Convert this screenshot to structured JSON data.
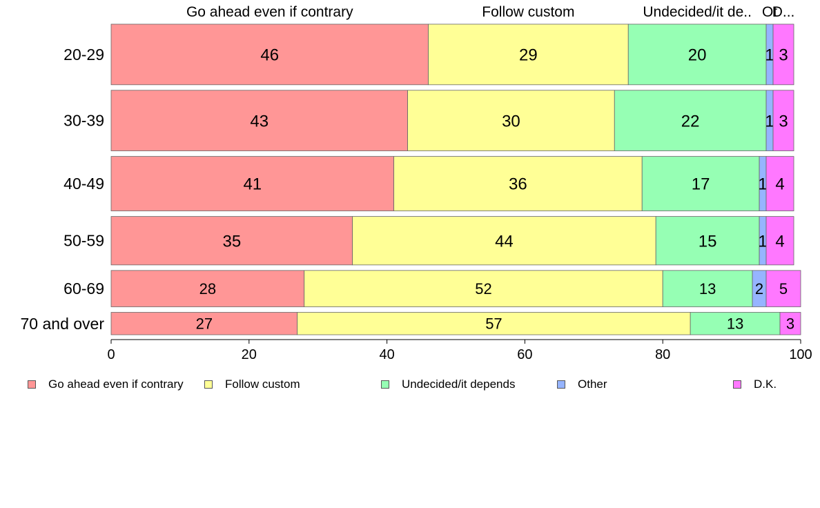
{
  "chart_data": {
    "type": "bar",
    "orientation": "horizontal",
    "stacked": true,
    "categories": [
      "20-29",
      "30-39",
      "40-49",
      "50-59",
      "60-69",
      "70 and over"
    ],
    "category_weights": [
      1.0,
      1.0,
      0.9,
      0.8,
      0.6,
      0.37
    ],
    "series": [
      {
        "name": "Go ahead even if contrary",
        "top_label": "Go ahead even if contrary",
        "color": "#ff9696",
        "values": [
          46,
          43,
          41,
          35,
          28,
          27
        ]
      },
      {
        "name": "Follow custom",
        "top_label": "Follow custom",
        "color": "#ffff96",
        "values": [
          29,
          30,
          36,
          44,
          52,
          57
        ]
      },
      {
        "name": "Undecided/it depends",
        "top_label": "Undecided/it de..",
        "color": "#96ffb4",
        "values": [
          20,
          22,
          17,
          15,
          13,
          13
        ]
      },
      {
        "name": "Other",
        "top_label": "Ot",
        "color": "#96b4ff",
        "values": [
          1,
          1,
          1,
          1,
          2,
          0
        ]
      },
      {
        "name": "D.K.",
        "top_label": "D...",
        "color": "#ff78ff",
        "values": [
          3,
          3,
          4,
          4,
          5,
          3
        ]
      }
    ],
    "xlim": [
      0,
      100
    ],
    "xticks": [
      0,
      20,
      40,
      60,
      80,
      100
    ],
    "xlabel": "",
    "ylabel": "",
    "title": "",
    "grid": false,
    "legend_position": "bottom"
  }
}
